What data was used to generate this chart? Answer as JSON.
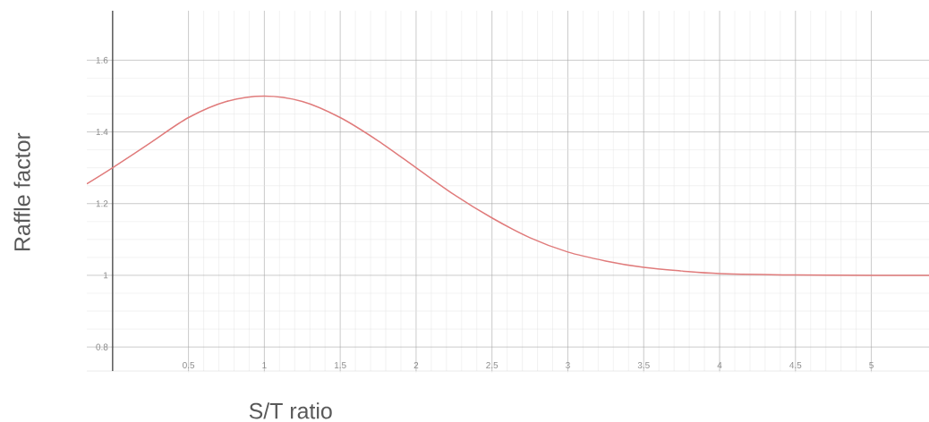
{
  "chart_data": {
    "type": "line",
    "xlabel": "S/T ratio",
    "ylabel": "Raffle factor",
    "x": [
      -0.17,
      0,
      0.25,
      0.5,
      0.75,
      1,
      1.25,
      1.5,
      1.75,
      2,
      2.25,
      2.5,
      2.75,
      3,
      3.25,
      3.5,
      3.75,
      4,
      4.5,
      5,
      5.38
    ],
    "series": [
      {
        "color": "#e07b7b",
        "values": [
          1.255,
          1.3,
          1.37,
          1.44,
          1.485,
          1.5,
          1.485,
          1.44,
          1.375,
          1.3,
          1.225,
          1.16,
          1.105,
          1.065,
          1.04,
          1.022,
          1.012,
          1.005,
          1.001,
          1.0,
          1.0
        ]
      }
    ],
    "xlim": [
      -0.17,
      5.38
    ],
    "ylim": [
      0.733,
      1.738
    ],
    "xticks": [
      0.5,
      1,
      1.5,
      2,
      2.5,
      3,
      3.5,
      4,
      4.5,
      5
    ],
    "yticks": [
      0.8,
      1,
      1.2,
      1.4,
      1.6
    ],
    "grid": true,
    "marker": "none",
    "line_style": "solid"
  }
}
